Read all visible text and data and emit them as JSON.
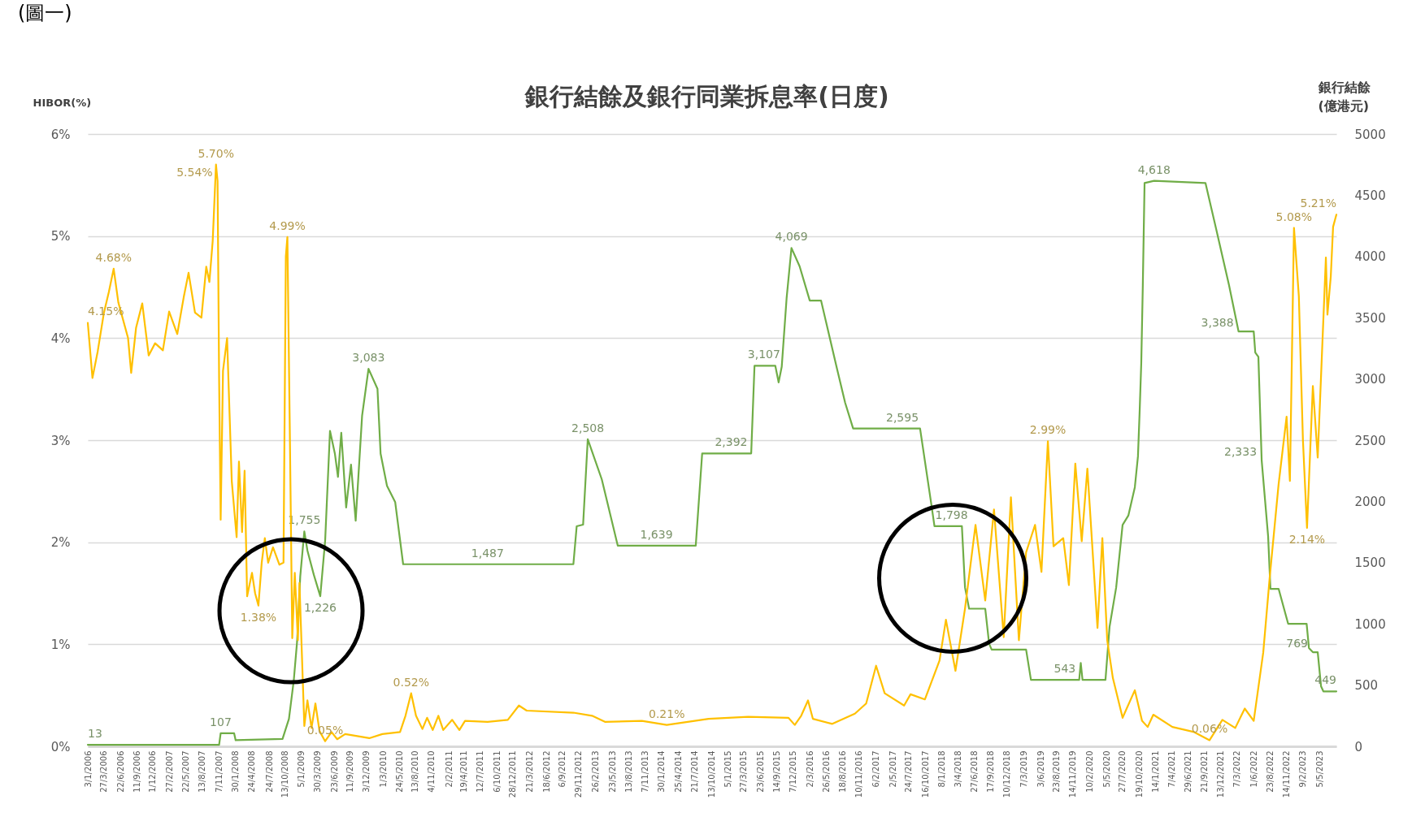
{
  "chart_data": {
    "type": "line",
    "title": "銀行結餘及銀行同業拆息率(日度)",
    "ylabel": "HIBOR(%)",
    "y2label": "銀行結餘\n(億港元)",
    "annotations": [
      "(圖一)"
    ],
    "xlim": [
      "2006-01-03",
      "2023-07-31"
    ],
    "xticks": [
      {
        "value": "2006-01-03",
        "label": "3/1/2006"
      },
      {
        "value": "2006-03-27",
        "label": "27/3/2006"
      },
      {
        "value": "2006-06-22",
        "label": "22/6/2006"
      },
      {
        "value": "2006-09-11",
        "label": "11/9/2006"
      },
      {
        "value": "2006-12-01",
        "label": "1/12/2006"
      },
      {
        "value": "2007-02-27",
        "label": "27/2/2007"
      },
      {
        "value": "2007-05-22",
        "label": "22/5/2007"
      },
      {
        "value": "2007-08-13",
        "label": "13/8/2007"
      },
      {
        "value": "2007-11-07",
        "label": "7/11/2007"
      },
      {
        "value": "2008-01-30",
        "label": "30/1/2008"
      },
      {
        "value": "2008-04-24",
        "label": "24/4/2008"
      },
      {
        "value": "2008-07-24",
        "label": "24/7/2008"
      },
      {
        "value": "2008-10-13",
        "label": "13/10/2008"
      },
      {
        "value": "2009-01-05",
        "label": "5/1/2009"
      },
      {
        "value": "2009-03-30",
        "label": "30/3/2009"
      },
      {
        "value": "2009-06-23",
        "label": "23/6/2009"
      },
      {
        "value": "2009-09-11",
        "label": "11/9/2009"
      },
      {
        "value": "2009-12-03",
        "label": "3/12/2009"
      },
      {
        "value": "2010-03-01",
        "label": "1/3/2010"
      },
      {
        "value": "2010-05-24",
        "label": "24/5/2010"
      },
      {
        "value": "2010-08-13",
        "label": "13/8/2010"
      },
      {
        "value": "2010-11-04",
        "label": "4/11/2010"
      },
      {
        "value": "2011-02-02",
        "label": "2/2/2011"
      },
      {
        "value": "2011-04-19",
        "label": "19/4/2011"
      },
      {
        "value": "2011-07-12",
        "label": "12/7/2011"
      },
      {
        "value": "2011-10-06",
        "label": "6/10/2011"
      },
      {
        "value": "2011-12-28",
        "label": "28/12/2011"
      },
      {
        "value": "2012-03-21",
        "label": "21/3/2012"
      },
      {
        "value": "2012-06-18",
        "label": "18/6/2012"
      },
      {
        "value": "2012-09-06",
        "label": "6/9/2012"
      },
      {
        "value": "2012-11-29",
        "label": "29/11/2012"
      },
      {
        "value": "2013-02-26",
        "label": "26/2/2013"
      },
      {
        "value": "2013-05-23",
        "label": "23/5/2013"
      },
      {
        "value": "2013-08-13",
        "label": "13/8/2013"
      },
      {
        "value": "2013-11-07",
        "label": "7/11/2013"
      },
      {
        "value": "2014-01-30",
        "label": "30/1/2014"
      },
      {
        "value": "2014-04-25",
        "label": "25/4/2014"
      },
      {
        "value": "2014-07-21",
        "label": "21/7/2014"
      },
      {
        "value": "2014-10-13",
        "label": "13/10/2014"
      },
      {
        "value": "2015-01-05",
        "label": "5/1/2015"
      },
      {
        "value": "2015-03-27",
        "label": "27/3/2015"
      },
      {
        "value": "2015-06-23",
        "label": "23/6/2015"
      },
      {
        "value": "2015-09-14",
        "label": "14/9/2015"
      },
      {
        "value": "2015-12-07",
        "label": "7/12/2015"
      },
      {
        "value": "2016-03-02",
        "label": "2/3/2016"
      },
      {
        "value": "2016-05-26",
        "label": "26/5/2016"
      },
      {
        "value": "2016-08-18",
        "label": "18/8/2016"
      },
      {
        "value": "2016-11-10",
        "label": "10/11/2016"
      },
      {
        "value": "2017-02-06",
        "label": "6/2/2017"
      },
      {
        "value": "2017-05-02",
        "label": "2/5/2017"
      },
      {
        "value": "2017-07-24",
        "label": "24/7/2017"
      },
      {
        "value": "2017-10-16",
        "label": "16/10/2017"
      },
      {
        "value": "2018-01-08",
        "label": "8/1/2018"
      },
      {
        "value": "2018-04-03",
        "label": "3/4/2018"
      },
      {
        "value": "2018-06-27",
        "label": "27/6/2018"
      },
      {
        "value": "2018-09-17",
        "label": "17/9/2018"
      },
      {
        "value": "2018-12-10",
        "label": "10/12/2018"
      },
      {
        "value": "2019-03-07",
        "label": "7/3/2019"
      },
      {
        "value": "2019-06-03",
        "label": "3/6/2019"
      },
      {
        "value": "2019-08-23",
        "label": "23/8/2019"
      },
      {
        "value": "2019-11-14",
        "label": "14/11/2019"
      },
      {
        "value": "2020-02-10",
        "label": "10/2/2020"
      },
      {
        "value": "2020-05-05",
        "label": "5/5/2020"
      },
      {
        "value": "2020-07-27",
        "label": "27/7/2020"
      },
      {
        "value": "2020-10-19",
        "label": "19/10/2020"
      },
      {
        "value": "2021-01-14",
        "label": "14/1/2021"
      },
      {
        "value": "2021-04-07",
        "label": "7/4/2021"
      },
      {
        "value": "2021-06-29",
        "label": "29/6/2021"
      },
      {
        "value": "2021-09-21",
        "label": "21/9/2021"
      },
      {
        "value": "2021-12-13",
        "label": "13/12/2021"
      },
      {
        "value": "2022-03-07",
        "label": "7/3/2022"
      },
      {
        "value": "2022-06-01",
        "label": "1/6/2022"
      },
      {
        "value": "2022-08-23",
        "label": "23/8/2022"
      },
      {
        "value": "2022-11-14",
        "label": "14/11/2022"
      },
      {
        "value": "2023-02-09",
        "label": "9/2/2023"
      },
      {
        "value": "2023-05-05",
        "label": "5/5/2023"
      }
    ],
    "ylim": [
      0,
      6
    ],
    "yticks": [
      {
        "value": 0,
        "label": "0%"
      },
      {
        "value": 1,
        "label": "1%"
      },
      {
        "value": 2,
        "label": "2%"
      },
      {
        "value": 3,
        "label": "3%"
      },
      {
        "value": 4,
        "label": "4%"
      },
      {
        "value": 5,
        "label": "5%"
      },
      {
        "value": 6,
        "label": "6%"
      }
    ],
    "y2lim": [
      0,
      5000
    ],
    "y2ticks": [
      0,
      500,
      1000,
      1500,
      2000,
      2500,
      3000,
      3500,
      4000,
      4500,
      5000
    ],
    "grid": "y",
    "line_style": "solid",
    "series": [
      {
        "color": "#70ad47",
        "axis": "y2",
        "x": [
          "2006-01-03",
          "2007-11-09",
          "2007-11-17",
          "2008-01-25",
          "2008-02-02",
          "2008-09-30",
          "2008-11-02",
          "2008-11-27",
          "2008-12-14",
          "2008-12-30",
          "2009-01-20",
          "2009-02-05",
          "2009-03-10",
          "2009-04-12",
          "2009-05-07",
          "2009-06-01",
          "2009-06-26",
          "2009-07-12",
          "2009-07-29",
          "2009-08-23",
          "2009-09-17",
          "2009-10-11",
          "2009-11-13",
          "2009-12-16",
          "2010-01-31",
          "2010-02-16",
          "2010-03-21",
          "2010-05-02",
          "2010-06-12",
          "2011-08-20",
          "2012-11-03",
          "2012-11-20",
          "2012-12-23",
          "2013-01-16",
          "2013-03-29",
          "2013-06-19",
          "2014-01-04",
          "2014-07-25",
          "2014-08-27",
          "2015-01-23",
          "2015-05-06",
          "2015-05-23",
          "2015-07-11",
          "2015-09-07",
          "2015-09-24",
          "2015-10-10",
          "2015-11-04",
          "2015-11-29",
          "2016-01-10",
          "2016-03-02",
          "2016-04-29",
          "2016-07-20",
          "2016-08-31",
          "2016-10-11",
          "2017-06-21",
          "2017-09-20",
          "2017-11-17",
          "2017-12-03",
          "2018-03-01",
          "2018-04-23",
          "2018-05-09",
          "2018-05-30",
          "2018-08-21",
          "2018-09-10",
          "2018-09-23",
          "2019-03-19",
          "2019-04-13",
          "2019-10-04",
          "2019-12-17",
          "2019-12-25",
          "2020-01-03",
          "2020-04-30",
          "2020-05-21",
          "2020-06-24",
          "2020-07-27",
          "2020-08-26",
          "2020-09-28",
          "2020-10-14",
          "2020-10-23",
          "2020-10-31",
          "2020-11-08",
          "2020-11-17",
          "2021-01-05",
          "2021-09-26",
          "2021-11-20",
          "2022-01-25",
          "2022-03-15",
          "2022-06-01",
          "2022-06-09",
          "2022-06-25",
          "2022-07-12",
          "2022-08-14",
          "2022-08-26",
          "2022-10-07",
          "2022-11-25",
          "2023-02-28",
          "2023-03-12",
          "2023-04-01",
          "2023-04-26",
          "2023-05-13",
          "2023-05-25",
          "2023-07-31"
        ],
        "values": [
          13,
          13,
          107,
          107,
          50,
          60,
          225,
          542,
          859,
          1387,
          1755,
          1598,
          1400,
          1226,
          1678,
          2576,
          2391,
          2200,
          2560,
          1950,
          2300,
          1843,
          2700,
          3083,
          2919,
          2391,
          2127,
          1995,
          1487,
          1487,
          1487,
          1797,
          1810,
          2508,
          2180,
          1639,
          1639,
          1639,
          2392,
          2392,
          2392,
          3107,
          3107,
          3107,
          2972,
          3100,
          3659,
          4069,
          3919,
          3640,
          3640,
          3083,
          2805,
          2595,
          2595,
          2595,
          1975,
          1798,
          1798,
          1798,
          1297,
          1124,
          1124,
          838,
          790,
          790,
          543,
          543,
          543,
          680,
          543,
          543,
          976,
          1297,
          1808,
          1886,
          2116,
          2368,
          2748,
          3130,
          3767,
          4600,
          4618,
          4600,
          4224,
          3767,
          3388,
          3388,
          3216,
          3180,
          2333,
          1717,
          1286,
          1286,
          1001,
          1001,
          802,
          769,
          769,
          491,
          449,
          449
        ],
        "value_labels": [
          "13",
          null,
          "107",
          null,
          null,
          null,
          null,
          null,
          null,
          null,
          "1,755",
          null,
          null,
          "1,226",
          null,
          null,
          null,
          null,
          null,
          null,
          null,
          null,
          null,
          "3,083",
          null,
          null,
          null,
          null,
          null,
          "1,487",
          null,
          null,
          null,
          "2,508",
          null,
          null,
          "1,639",
          null,
          null,
          "2,392",
          null,
          null,
          "3,107",
          null,
          null,
          null,
          null,
          "4,069",
          null,
          null,
          null,
          null,
          null,
          null,
          "2,595",
          null,
          null,
          null,
          "1,798",
          null,
          null,
          null,
          null,
          null,
          null,
          null,
          null,
          "543",
          null,
          null,
          null,
          null,
          null,
          null,
          null,
          null,
          null,
          null,
          null,
          null,
          null,
          null,
          "4,618",
          null,
          null,
          null,
          "3,388",
          null,
          null,
          null,
          "2,333",
          null,
          null,
          null,
          null,
          null,
          null,
          "769",
          null,
          null,
          null,
          "449"
        ]
      },
      {
        "color": "#ffc000",
        "x": [
          "2006-01-03",
          "2006-01-27",
          "2006-02-23",
          "2006-03-27",
          "2006-04-21",
          "2006-05-16",
          "2006-06-09",
          "2006-07-29",
          "2006-08-14",
          "2006-09-08",
          "2006-10-10",
          "2006-11-12",
          "2006-12-15",
          "2007-01-24",
          "2007-02-25",
          "2007-04-08",
          "2007-05-11",
          "2007-06-05",
          "2007-07-08",
          "2007-08-10",
          "2007-09-04",
          "2007-09-20",
          "2007-10-07",
          "2007-10-24",
          "2007-11-01",
          "2007-11-09",
          "2007-11-17",
          "2007-11-29",
          "2007-12-20",
          "2008-01-13",
          "2008-02-07",
          "2008-02-19",
          "2008-03-06",
          "2008-03-19",
          "2008-04-01",
          "2008-04-26",
          "2008-05-12",
          "2008-05-29",
          "2008-06-15",
          "2008-07-01",
          "2008-07-18",
          "2008-08-12",
          "2008-09-14",
          "2008-10-05",
          "2008-10-17",
          "2008-10-25",
          "2008-11-07",
          "2008-11-19",
          "2008-12-02",
          "2008-12-18",
          "2008-12-26",
          "2009-01-20",
          "2009-02-05",
          "2009-02-26",
          "2009-03-18",
          "2009-04-08",
          "2009-05-07",
          "2009-06-09",
          "2009-07-08",
          "2009-08-18",
          "2009-12-20",
          "2010-02-25",
          "2010-05-27",
          "2010-06-24",
          "2010-07-23",
          "2010-08-17",
          "2010-09-19",
          "2010-10-13",
          "2010-11-11",
          "2010-12-10",
          "2011-01-04",
          "2011-02-19",
          "2011-03-28",
          "2011-04-26",
          "2011-08-20",
          "2011-12-02",
          "2012-01-28",
          "2012-03-08",
          "2012-11-03",
          "2013-02-07",
          "2013-04-14",
          "2013-10-21",
          "2014-02-26",
          "2014-09-29",
          "2015-04-20",
          "2015-11-13",
          "2015-12-16",
          "2016-01-18",
          "2016-02-22",
          "2016-03-18",
          "2016-06-26",
          "2016-10-20",
          "2016-12-17",
          "2017-02-06",
          "2017-03-22",
          "2017-06-30",
          "2017-08-02",
          "2017-10-15",
          "2017-12-29",
          "2018-01-31",
          "2018-03-21",
          "2018-05-09",
          "2018-07-02",
          "2018-08-21",
          "2018-10-05",
          "2018-11-24",
          "2018-12-31",
          "2019-02-10",
          "2019-03-19",
          "2019-05-04",
          "2019-06-06",
          "2019-07-09",
          "2019-08-07",
          "2019-09-26",
          "2019-10-25",
          "2019-11-27",
          "2019-12-30",
          "2020-01-28",
          "2020-03-20",
          "2020-04-14",
          "2020-05-09",
          "2020-06-07",
          "2020-07-27",
          "2020-09-28",
          "2020-11-04",
          "2020-12-03",
          "2021-01-01",
          "2021-04-09",
          "2021-07-30",
          "2021-10-17",
          "2021-12-22",
          "2022-02-26",
          "2022-04-16",
          "2022-06-01",
          "2022-07-20",
          "2022-08-22",
          "2022-10-07",
          "2022-11-17",
          "2022-12-04",
          "2022-12-25",
          "2023-01-19",
          "2023-02-09",
          "2023-03-02",
          "2023-04-01",
          "2023-04-26",
          "2023-06-07",
          "2023-06-15",
          "2023-07-02",
          "2023-07-14",
          "2023-07-31"
        ],
        "values": [
          4.15,
          3.61,
          3.87,
          4.25,
          4.45,
          4.68,
          4.35,
          4.0,
          3.66,
          4.1,
          4.34,
          3.83,
          3.95,
          3.88,
          4.26,
          4.04,
          4.4,
          4.64,
          4.25,
          4.2,
          4.7,
          4.55,
          4.95,
          5.7,
          5.54,
          3.6,
          2.22,
          3.68,
          4.0,
          2.6,
          2.05,
          2.79,
          2.1,
          2.7,
          1.47,
          1.7,
          1.5,
          1.38,
          1.8,
          2.04,
          1.8,
          1.95,
          1.78,
          1.8,
          4.8,
          4.99,
          3.0,
          1.06,
          1.7,
          1.04,
          1.6,
          0.2,
          0.45,
          0.18,
          0.42,
          0.15,
          0.05,
          0.14,
          0.07,
          0.12,
          0.08,
          0.12,
          0.14,
          0.3,
          0.52,
          0.3,
          0.17,
          0.28,
          0.16,
          0.3,
          0.16,
          0.26,
          0.16,
          0.25,
          0.24,
          0.26,
          0.4,
          0.35,
          0.33,
          0.3,
          0.24,
          0.25,
          0.21,
          0.27,
          0.29,
          0.28,
          0.21,
          0.3,
          0.45,
          0.27,
          0.22,
          0.32,
          0.42,
          0.79,
          0.52,
          0.4,
          0.51,
          0.46,
          0.84,
          1.24,
          0.74,
          1.35,
          2.17,
          1.43,
          2.32,
          1.07,
          2.44,
          1.04,
          1.9,
          2.17,
          1.71,
          2.99,
          1.96,
          2.04,
          1.58,
          2.77,
          2.01,
          2.72,
          1.16,
          2.04,
          1.04,
          0.67,
          0.28,
          0.55,
          0.25,
          0.19,
          0.31,
          0.19,
          0.14,
          0.06,
          0.26,
          0.18,
          0.37,
          0.25,
          0.92,
          1.65,
          2.57,
          3.23,
          2.6,
          5.08,
          4.41,
          3.0,
          2.14,
          3.53,
          2.83,
          4.79,
          4.23,
          4.6,
          5.09,
          5.21
        ],
        "value_labels": [
          "4.15%",
          null,
          null,
          null,
          null,
          "4.68%",
          null,
          null,
          null,
          null,
          null,
          null,
          null,
          null,
          null,
          null,
          null,
          null,
          null,
          null,
          null,
          null,
          null,
          "5.70%",
          "5.54%",
          null,
          null,
          null,
          null,
          null,
          null,
          null,
          null,
          null,
          null,
          null,
          null,
          "1.38%",
          null,
          null,
          null,
          null,
          null,
          null,
          null,
          "4.99%",
          null,
          null,
          null,
          null,
          null,
          null,
          null,
          null,
          null,
          null,
          "0.05%",
          null,
          null,
          null,
          null,
          null,
          null,
          null,
          "0.52%",
          null,
          null,
          null,
          null,
          null,
          null,
          null,
          null,
          null,
          null,
          null,
          null,
          null,
          null,
          null,
          null,
          null,
          "0.21%",
          null,
          null,
          null,
          null,
          null,
          null,
          null,
          null,
          null,
          null,
          null,
          null,
          null,
          null,
          null,
          null,
          null,
          null,
          null,
          null,
          null,
          null,
          null,
          null,
          null,
          null,
          null,
          null,
          "2.99%",
          null,
          null,
          null,
          null,
          null,
          null,
          null,
          null,
          null,
          null,
          null,
          null,
          null,
          null,
          null,
          null,
          null,
          "0.06%",
          null,
          null,
          null,
          null,
          null,
          null,
          null,
          null,
          null,
          "5.08%",
          null,
          null,
          "2.14%",
          null,
          null,
          null,
          null,
          null,
          null,
          "5.21%"
        ]
      }
    ]
  }
}
